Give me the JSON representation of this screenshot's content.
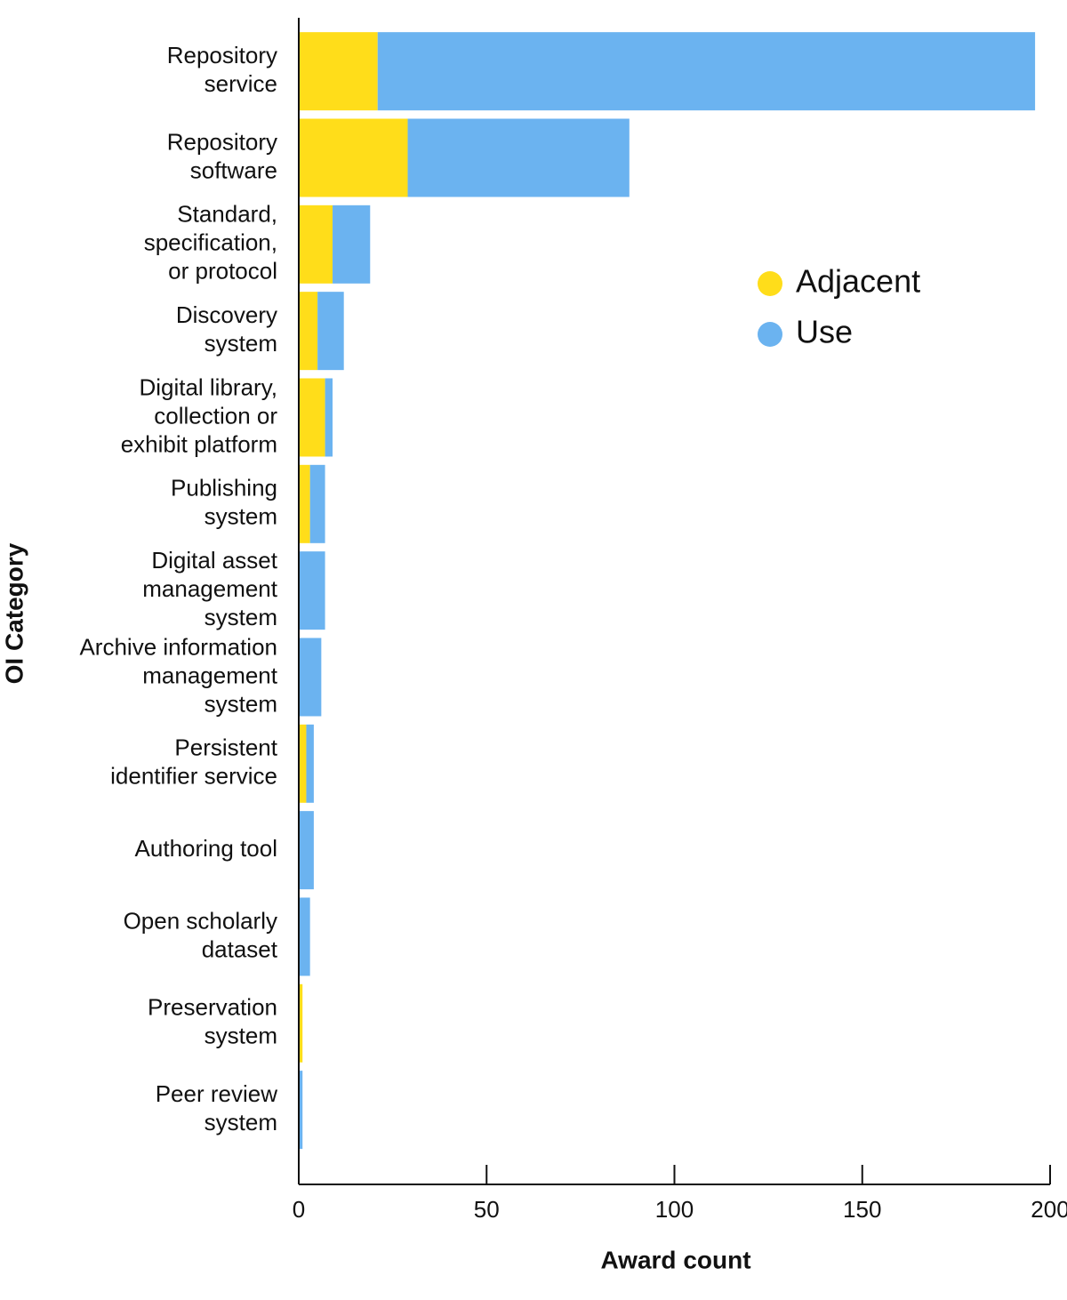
{
  "chart_data": {
    "type": "stacked-barh",
    "xlabel": "Award count",
    "ylabel": "OI Category",
    "categories": [
      [
        "Repository",
        "service"
      ],
      [
        "Repository",
        "software"
      ],
      [
        "Standard,",
        "specification,",
        "or protocol"
      ],
      [
        "Discovery",
        "system"
      ],
      [
        "Digital library,",
        "collection or",
        "exhibit platform"
      ],
      [
        "Publishing",
        "system"
      ],
      [
        "Digital asset",
        "management",
        "system"
      ],
      [
        "Archive information",
        "management",
        "system"
      ],
      [
        "Persistent",
        "identifier service"
      ],
      [
        "Authoring tool"
      ],
      [
        "Open scholarly",
        "dataset"
      ],
      [
        "Preservation",
        "system"
      ],
      [
        "Peer review",
        "system"
      ]
    ],
    "series": [
      {
        "name": "Adjacent",
        "color": "#FFDD1A",
        "values": [
          21,
          29,
          9,
          5,
          7,
          3,
          0,
          0,
          2,
          0,
          0,
          1,
          0
        ]
      },
      {
        "name": "Use",
        "color": "#6BB3F0",
        "values": [
          175,
          59,
          10,
          7,
          2,
          4,
          7,
          6,
          2,
          4,
          3,
          0,
          1
        ]
      }
    ],
    "xlim": [
      0,
      200
    ],
    "xticks": [
      0,
      50,
      100,
      150,
      200
    ],
    "legend": "upper right"
  }
}
